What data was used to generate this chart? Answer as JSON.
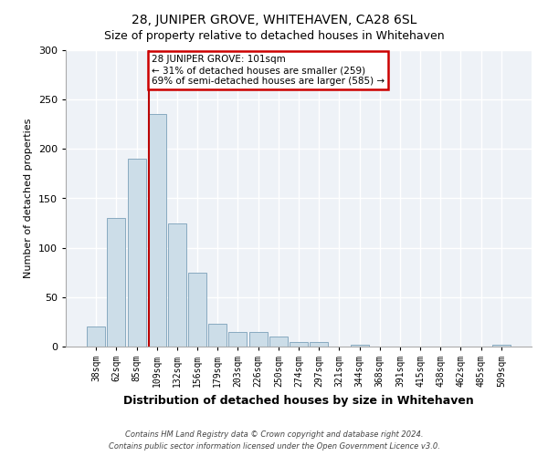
{
  "title": "28, JUNIPER GROVE, WHITEHAVEN, CA28 6SL",
  "subtitle": "Size of property relative to detached houses in Whitehaven",
  "xlabel": "Distribution of detached houses by size in Whitehaven",
  "ylabel": "Number of detached properties",
  "bar_labels": [
    "38sqm",
    "62sqm",
    "85sqm",
    "109sqm",
    "132sqm",
    "156sqm",
    "179sqm",
    "203sqm",
    "226sqm",
    "250sqm",
    "274sqm",
    "297sqm",
    "321sqm",
    "344sqm",
    "368sqm",
    "391sqm",
    "415sqm",
    "438sqm",
    "462sqm",
    "485sqm",
    "509sqm"
  ],
  "bar_values": [
    20,
    130,
    190,
    235,
    125,
    75,
    23,
    15,
    15,
    10,
    5,
    5,
    0,
    2,
    0,
    0,
    0,
    0,
    0,
    0,
    2
  ],
  "bar_color": "#ccdde8",
  "bar_edgecolor": "#88aac0",
  "annotation_label": "28 JUNIPER GROVE: 101sqm",
  "annotation_line1": "← 31% of detached houses are smaller (259)",
  "annotation_line2": "69% of semi-detached houses are larger (585) →",
  "annotation_box_facecolor": "#ffffff",
  "annotation_box_edgecolor": "#cc0000",
  "vline_color": "#bb0000",
  "vline_x_idx": 2.6,
  "ylim": [
    0,
    300
  ],
  "yticks": [
    0,
    50,
    100,
    150,
    200,
    250,
    300
  ],
  "fig_bg_color": "#ffffff",
  "axes_bg_color": "#eef2f7",
  "grid_color": "#ffffff",
  "title_fontsize": 10,
  "subtitle_fontsize": 9,
  "xlabel_fontsize": 9,
  "ylabel_fontsize": 8,
  "tick_fontsize": 7,
  "footer1": "Contains HM Land Registry data © Crown copyright and database right 2024.",
  "footer2": "Contains public sector information licensed under the Open Government Licence v3.0."
}
